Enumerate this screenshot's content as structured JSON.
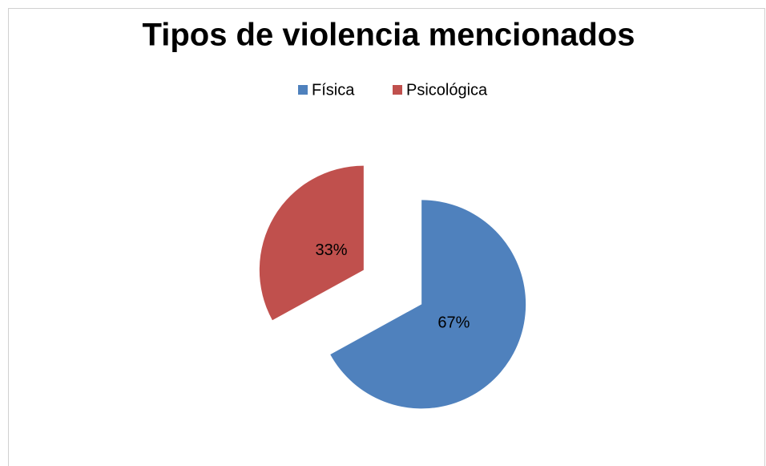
{
  "chart_data": {
    "type": "pie",
    "title": "Tipos de violencia mencionados",
    "categories": [
      "Física",
      "Psicológica"
    ],
    "values": [
      67,
      33
    ],
    "value_labels": [
      "67%",
      "33%"
    ],
    "colors": [
      "#4f81bd",
      "#c0504d"
    ],
    "legend": "top"
  }
}
